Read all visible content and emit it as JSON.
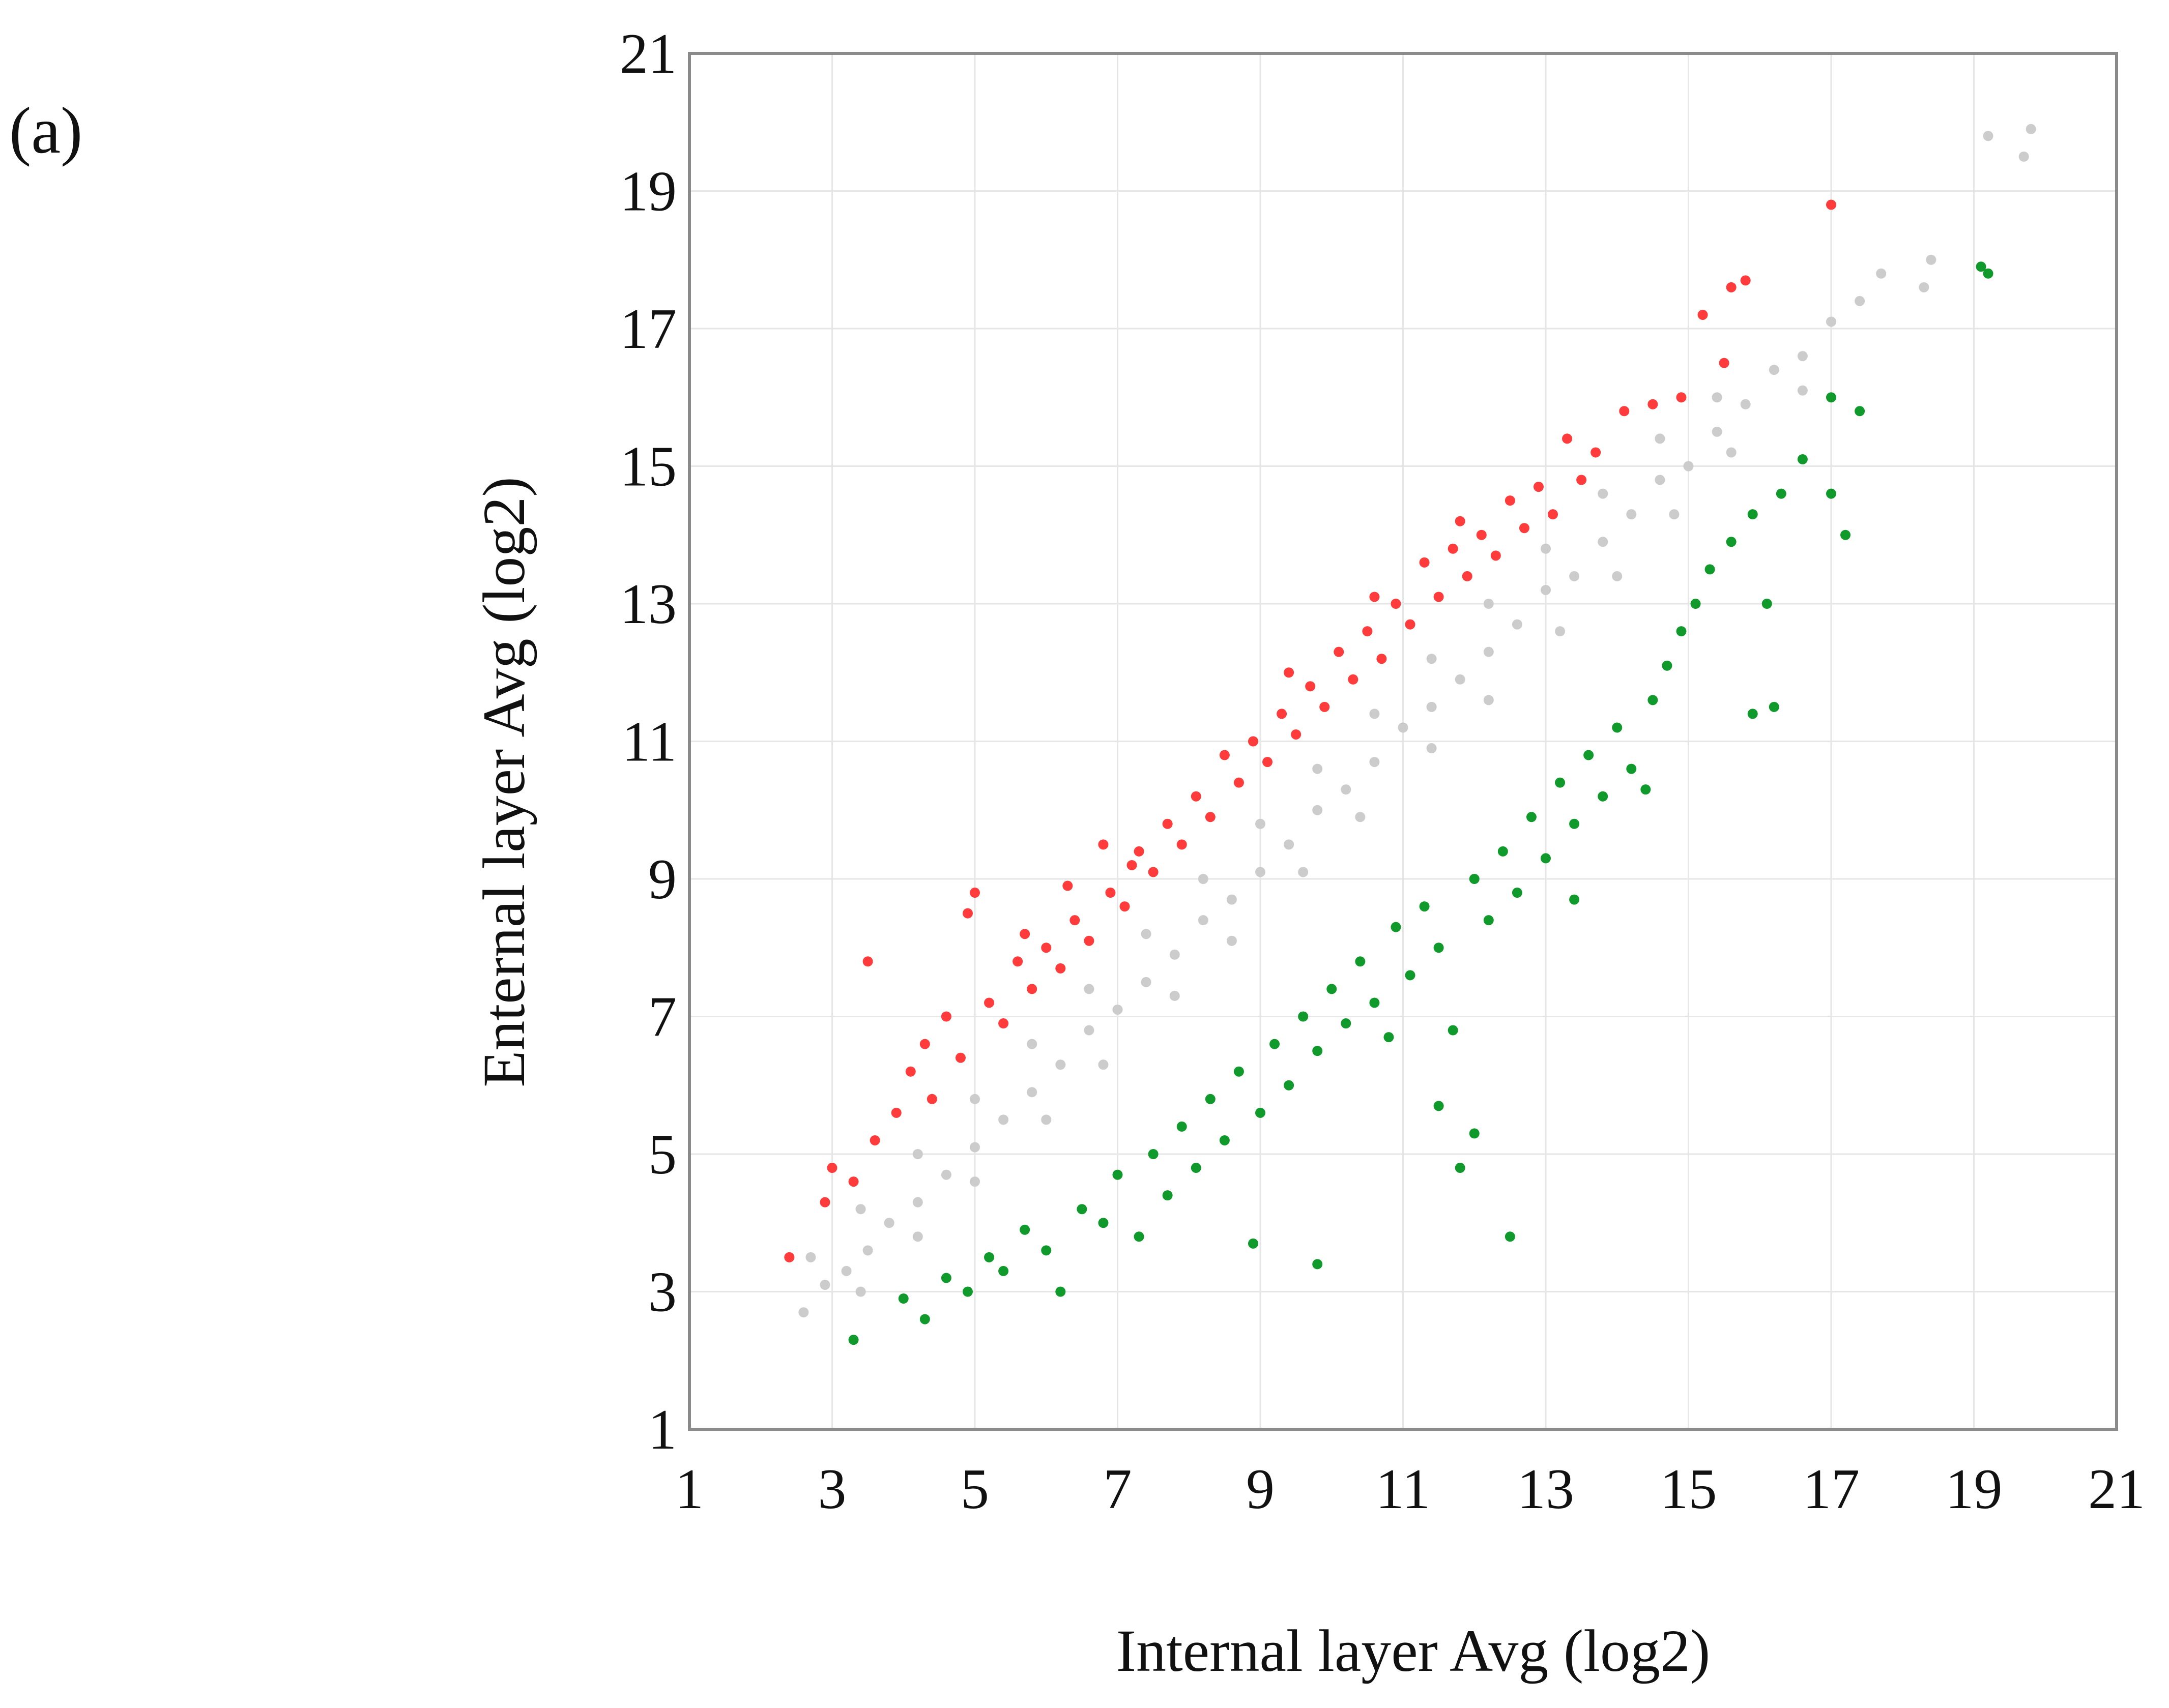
{
  "panel_label": "(a)",
  "colors": {
    "up": "#ff3b3b",
    "down": "#119a2c",
    "unchanged": "#cccccc",
    "grid": "#e6e6e6",
    "frame": "#8a8a8a"
  },
  "chart_data": {
    "type": "scatter",
    "title": "",
    "xlabel": "Internal layer Avg (log2)",
    "ylabel": "Enternal layer  Avg (log2)",
    "xlim": [
      1,
      21
    ],
    "ylim": [
      1,
      21
    ],
    "x_ticks": [
      1,
      3,
      5,
      7,
      9,
      11,
      13,
      15,
      17,
      19,
      21
    ],
    "y_ticks": [
      1,
      3,
      5,
      7,
      9,
      11,
      13,
      15,
      17,
      19,
      21
    ],
    "grid": true,
    "legend": "none",
    "series": [
      {
        "color": "#cccccc",
        "points": [
          [
            2.6,
            2.7
          ],
          [
            2.9,
            3.1
          ],
          [
            3.2,
            3.3
          ],
          [
            3.5,
            3.6
          ],
          [
            3.8,
            4.0
          ],
          [
            4.2,
            4.3
          ],
          [
            4.6,
            4.7
          ],
          [
            5.0,
            5.1
          ],
          [
            5.4,
            5.5
          ],
          [
            5.8,
            5.9
          ],
          [
            6.2,
            6.3
          ],
          [
            6.6,
            6.8
          ],
          [
            7.0,
            7.1
          ],
          [
            7.4,
            7.5
          ],
          [
            7.8,
            7.9
          ],
          [
            8.2,
            8.4
          ],
          [
            8.6,
            8.7
          ],
          [
            9.0,
            9.1
          ],
          [
            9.4,
            9.5
          ],
          [
            9.8,
            10.0
          ],
          [
            10.2,
            10.3
          ],
          [
            10.6,
            10.7
          ],
          [
            11.0,
            11.2
          ],
          [
            11.4,
            11.5
          ],
          [
            11.8,
            11.9
          ],
          [
            12.2,
            12.3
          ],
          [
            12.6,
            12.7
          ],
          [
            13.0,
            13.2
          ],
          [
            13.4,
            13.4
          ],
          [
            13.8,
            13.9
          ],
          [
            14.2,
            14.3
          ],
          [
            14.6,
            14.8
          ],
          [
            15.0,
            15.0
          ],
          [
            15.4,
            15.5
          ],
          [
            15.8,
            15.9
          ],
          [
            16.2,
            16.4
          ],
          [
            16.6,
            16.6
          ],
          [
            17.0,
            17.1
          ],
          [
            17.4,
            17.4
          ],
          [
            17.7,
            17.8
          ],
          [
            18.4,
            18.0
          ],
          [
            19.2,
            19.8
          ],
          [
            19.8,
            19.9
          ],
          [
            19.7,
            19.5
          ],
          [
            18.3,
            17.6
          ],
          [
            16.6,
            16.1
          ],
          [
            15.6,
            15.2
          ],
          [
            14.8,
            14.3
          ],
          [
            14.0,
            13.4
          ],
          [
            13.2,
            12.6
          ],
          [
            12.2,
            11.6
          ],
          [
            11.4,
            10.9
          ],
          [
            10.4,
            9.9
          ],
          [
            9.6,
            9.1
          ],
          [
            8.6,
            8.1
          ],
          [
            7.8,
            7.3
          ],
          [
            6.8,
            6.3
          ],
          [
            6.0,
            5.5
          ],
          [
            5.0,
            4.6
          ],
          [
            4.2,
            3.8
          ],
          [
            3.4,
            3.0
          ],
          [
            2.7,
            3.5
          ],
          [
            3.4,
            4.2
          ],
          [
            4.2,
            5.0
          ],
          [
            5.0,
            5.8
          ],
          [
            5.8,
            6.6
          ],
          [
            6.6,
            7.4
          ],
          [
            7.4,
            8.2
          ],
          [
            8.2,
            9.0
          ],
          [
            9.0,
            9.8
          ],
          [
            9.8,
            10.6
          ],
          [
            10.6,
            11.4
          ],
          [
            11.4,
            12.2
          ],
          [
            12.2,
            13.0
          ],
          [
            13.0,
            13.8
          ],
          [
            13.8,
            14.6
          ],
          [
            14.6,
            15.4
          ],
          [
            15.4,
            16.0
          ]
        ]
      },
      {
        "color": "#ff3b3b",
        "points": [
          [
            2.4,
            3.5
          ],
          [
            2.9,
            4.3
          ],
          [
            3.0,
            4.8
          ],
          [
            3.3,
            4.6
          ],
          [
            3.5,
            7.8
          ],
          [
            3.6,
            5.2
          ],
          [
            3.9,
            5.6
          ],
          [
            4.1,
            6.2
          ],
          [
            4.3,
            6.6
          ],
          [
            4.4,
            5.8
          ],
          [
            4.6,
            7.0
          ],
          [
            4.8,
            6.4
          ],
          [
            4.9,
            8.5
          ],
          [
            5.0,
            8.8
          ],
          [
            5.2,
            7.2
          ],
          [
            5.4,
            6.9
          ],
          [
            5.6,
            7.8
          ],
          [
            5.8,
            7.4
          ],
          [
            6.0,
            8.0
          ],
          [
            6.2,
            7.7
          ],
          [
            6.4,
            8.4
          ],
          [
            6.6,
            8.1
          ],
          [
            6.8,
            9.5
          ],
          [
            6.9,
            8.8
          ],
          [
            7.1,
            8.6
          ],
          [
            7.3,
            9.4
          ],
          [
            7.5,
            9.1
          ],
          [
            7.7,
            9.8
          ],
          [
            7.9,
            9.5
          ],
          [
            8.1,
            10.2
          ],
          [
            8.3,
            9.9
          ],
          [
            8.5,
            10.8
          ],
          [
            8.7,
            10.4
          ],
          [
            8.9,
            11.0
          ],
          [
            9.1,
            10.7
          ],
          [
            9.3,
            11.4
          ],
          [
            9.5,
            11.1
          ],
          [
            9.7,
            11.8
          ],
          [
            9.9,
            11.5
          ],
          [
            10.1,
            12.3
          ],
          [
            10.3,
            11.9
          ],
          [
            10.5,
            12.6
          ],
          [
            10.7,
            12.2
          ],
          [
            10.9,
            13.0
          ],
          [
            11.1,
            12.7
          ],
          [
            11.3,
            13.6
          ],
          [
            11.5,
            13.1
          ],
          [
            11.7,
            13.8
          ],
          [
            11.9,
            13.4
          ],
          [
            12.1,
            14.0
          ],
          [
            12.3,
            13.7
          ],
          [
            12.5,
            14.5
          ],
          [
            12.7,
            14.1
          ],
          [
            12.9,
            14.7
          ],
          [
            13.1,
            14.3
          ],
          [
            13.3,
            15.4
          ],
          [
            13.5,
            14.8
          ],
          [
            13.7,
            15.2
          ],
          [
            14.1,
            15.8
          ],
          [
            14.5,
            15.9
          ],
          [
            14.9,
            16.0
          ],
          [
            15.2,
            17.2
          ],
          [
            15.5,
            16.5
          ],
          [
            15.8,
            17.7
          ],
          [
            15.6,
            17.6
          ],
          [
            17.0,
            18.8
          ],
          [
            7.2,
            9.2
          ],
          [
            6.3,
            8.9
          ],
          [
            5.7,
            8.2
          ],
          [
            9.4,
            12.0
          ],
          [
            10.6,
            13.1
          ],
          [
            11.8,
            14.2
          ]
        ]
      },
      {
        "color": "#119a2c",
        "points": [
          [
            3.3,
            2.3
          ],
          [
            4.0,
            2.9
          ],
          [
            4.3,
            2.6
          ],
          [
            4.6,
            3.2
          ],
          [
            4.9,
            3.0
          ],
          [
            5.2,
            3.5
          ],
          [
            5.4,
            3.3
          ],
          [
            5.7,
            3.9
          ],
          [
            6.0,
            3.6
          ],
          [
            6.2,
            3.0
          ],
          [
            6.5,
            4.2
          ],
          [
            6.8,
            4.0
          ],
          [
            7.0,
            4.7
          ],
          [
            7.3,
            3.8
          ],
          [
            7.5,
            5.0
          ],
          [
            7.7,
            4.4
          ],
          [
            7.9,
            5.4
          ],
          [
            8.1,
            4.8
          ],
          [
            8.3,
            5.8
          ],
          [
            8.5,
            5.2
          ],
          [
            8.7,
            6.2
          ],
          [
            8.9,
            3.7
          ],
          [
            9.0,
            5.6
          ],
          [
            9.2,
            6.6
          ],
          [
            9.4,
            6.0
          ],
          [
            9.6,
            7.0
          ],
          [
            9.8,
            3.4
          ],
          [
            9.8,
            6.5
          ],
          [
            10.0,
            7.4
          ],
          [
            10.2,
            6.9
          ],
          [
            10.4,
            7.8
          ],
          [
            10.6,
            7.2
          ],
          [
            10.8,
            6.7
          ],
          [
            10.9,
            8.3
          ],
          [
            11.1,
            7.6
          ],
          [
            11.3,
            8.6
          ],
          [
            11.5,
            5.7
          ],
          [
            11.5,
            8.0
          ],
          [
            11.7,
            6.8
          ],
          [
            11.8,
            4.8
          ],
          [
            12.0,
            5.3
          ],
          [
            12.0,
            9.0
          ],
          [
            12.2,
            8.4
          ],
          [
            12.4,
            9.4
          ],
          [
            12.5,
            3.8
          ],
          [
            12.6,
            8.8
          ],
          [
            12.8,
            9.9
          ],
          [
            13.0,
            9.3
          ],
          [
            13.2,
            10.4
          ],
          [
            13.4,
            8.7
          ],
          [
            13.4,
            9.8
          ],
          [
            13.6,
            10.8
          ],
          [
            13.8,
            10.2
          ],
          [
            14.0,
            11.2
          ],
          [
            14.2,
            10.6
          ],
          [
            14.4,
            10.3
          ],
          [
            14.5,
            11.6
          ],
          [
            14.7,
            12.1
          ],
          [
            14.9,
            12.6
          ],
          [
            15.1,
            13.0
          ],
          [
            15.3,
            13.5
          ],
          [
            15.6,
            13.9
          ],
          [
            15.9,
            14.3
          ],
          [
            15.9,
            11.4
          ],
          [
            16.1,
            13.0
          ],
          [
            16.2,
            11.5
          ],
          [
            16.3,
            14.6
          ],
          [
            16.6,
            15.1
          ],
          [
            17.0,
            14.6
          ],
          [
            17.0,
            16.0
          ],
          [
            17.2,
            14.0
          ],
          [
            17.4,
            15.8
          ],
          [
            19.1,
            17.9
          ],
          [
            19.2,
            17.8
          ]
        ]
      }
    ]
  }
}
